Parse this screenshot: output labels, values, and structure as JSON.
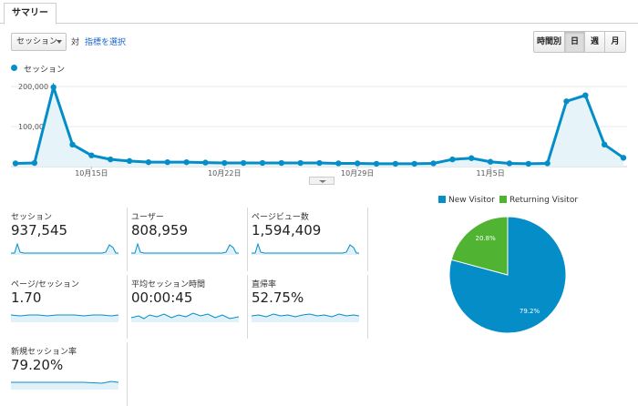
{
  "tab": {
    "label": "サマリー"
  },
  "toolbar": {
    "metric_select": "セッション",
    "vs_label": "対",
    "select_metric_link": "指標を選択",
    "period_buttons": [
      "時間別",
      "日",
      "週",
      "月"
    ],
    "active_period": "日"
  },
  "main_chart": {
    "legend": "セッション",
    "y_ticks": [
      "200,000",
      "100,000"
    ],
    "x_ticks": [
      "10月15日",
      "10月22日",
      "10月29日",
      "11月5日"
    ],
    "color": "#058dc7"
  },
  "chart_data": {
    "type": "area",
    "series": [
      {
        "name": "セッション",
        "values": [
          8000,
          9000,
          198000,
          55000,
          28000,
          18000,
          14000,
          11000,
          11000,
          11000,
          10000,
          9000,
          9000,
          9000,
          9000,
          9000,
          9000,
          8000,
          8000,
          7000,
          7000,
          7000,
          8000,
          18000,
          21000,
          12000,
          8000,
          7000,
          8000,
          163000,
          178000,
          55000,
          22000
        ]
      }
    ],
    "ylim": [
      0,
      200000
    ],
    "x_labels": [
      "10月15日",
      "10月22日",
      "10月29日",
      "11月5日"
    ]
  },
  "metrics": [
    {
      "label": "セッション",
      "value": "937,545"
    },
    {
      "label": "ユーザー",
      "value": "808,959"
    },
    {
      "label": "ページビュー数",
      "value": "1,594,409"
    },
    {
      "label": "ページ/セッション",
      "value": "1.70"
    },
    {
      "label": "平均セッション時間",
      "value": "00:00:45"
    },
    {
      "label": "直帰率",
      "value": "52.75%"
    },
    {
      "label": "新規セッション率",
      "value": "79.20%"
    }
  ],
  "pie": {
    "legend": [
      {
        "label": "New Visitor",
        "color": "#058dc7"
      },
      {
        "label": "Returning Visitor",
        "color": "#50b432"
      }
    ],
    "slices": [
      {
        "label": "79.2%",
        "value": 79.2,
        "color": "#058dc7"
      },
      {
        "label": "20.8%",
        "value": 20.8,
        "color": "#50b432"
      }
    ]
  }
}
